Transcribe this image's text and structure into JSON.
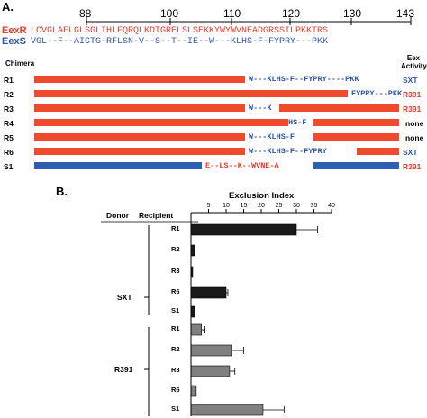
{
  "panel_a": {
    "label": "A.",
    "ruler": [
      "88",
      "100",
      "110",
      "120",
      "130",
      "143"
    ],
    "seq_red_label": "EexR",
    "seq_blue_label": "EexS",
    "seq_red": "LCVGLAFLGLSGLIHLFQRQLKDTGRELSLSEKKYWYWVNEADGRSSILPKKTRS",
    "seq_blue": "VGL--F--AICTG-RFLSN-V--S--T--IE--W---KLHS-F-FYPRY---PKK",
    "chimera_header": "Chimera",
    "activity_header": "Eex Activity",
    "rows": [
      {
        "name": "R1",
        "frag": "W---KLHS-F--FYPRY----PKK",
        "activity": "SXT"
      },
      {
        "name": "R2",
        "frag": "FYPRY---PKK",
        "activity": "R391"
      },
      {
        "name": "R3",
        "frag": "W---K",
        "activity": "R391"
      },
      {
        "name": "R4",
        "frag": "HS-F",
        "activity": "none"
      },
      {
        "name": "R5",
        "frag": "W---KLHS-F",
        "activity": "none"
      },
      {
        "name": "R6",
        "frag": "W---KLHS-F--FYPRY",
        "activity": "SXT"
      },
      {
        "name": "S1",
        "frag": "E--LS--K--WVNE-A",
        "activity": "R391"
      }
    ]
  },
  "panel_b": {
    "label": "B.",
    "header_donor": "Donor",
    "header_recipient": "Recipient",
    "groups": [
      {
        "donor": "SXT",
        "recipients": [
          "R1",
          "R2",
          "R3",
          "R6",
          "S1"
        ]
      },
      {
        "donor": "R391",
        "recipients": [
          "R1",
          "R2",
          "R3",
          "R6",
          "S1"
        ]
      }
    ]
  },
  "chart_data": {
    "type": "bar",
    "orientation": "horizontal",
    "title": "Exclusion Index",
    "xlim": [
      0,
      40
    ],
    "ticks": [
      5,
      10,
      15,
      20,
      25,
      30,
      35,
      40
    ],
    "bars": [
      {
        "donor": "SXT",
        "recipient": "R1",
        "value": 30,
        "error": 6,
        "color": "#1a1a1a"
      },
      {
        "donor": "SXT",
        "recipient": "R2",
        "value": 1,
        "error": 0,
        "color": "#1a1a1a"
      },
      {
        "donor": "SXT",
        "recipient": "R3",
        "value": 0.5,
        "error": 0,
        "color": "#1a1a1a"
      },
      {
        "donor": "SXT",
        "recipient": "R6",
        "value": 10,
        "error": 0.5,
        "color": "#1a1a1a"
      },
      {
        "donor": "SXT",
        "recipient": "S1",
        "value": 1,
        "error": 0,
        "color": "#1a1a1a"
      },
      {
        "donor": "R391",
        "recipient": "R1",
        "value": 3,
        "error": 1,
        "color": "#808080"
      },
      {
        "donor": "R391",
        "recipient": "R2",
        "value": 11.5,
        "error": 3.5,
        "color": "#808080"
      },
      {
        "donor": "R391",
        "recipient": "R3",
        "value": 11,
        "error": 1.5,
        "color": "#808080"
      },
      {
        "donor": "R391",
        "recipient": "R6",
        "value": 1.5,
        "error": 0,
        "color": "#808080"
      },
      {
        "donor": "R391",
        "recipient": "S1",
        "value": 20.5,
        "error": 6,
        "color": "#808080"
      }
    ]
  }
}
